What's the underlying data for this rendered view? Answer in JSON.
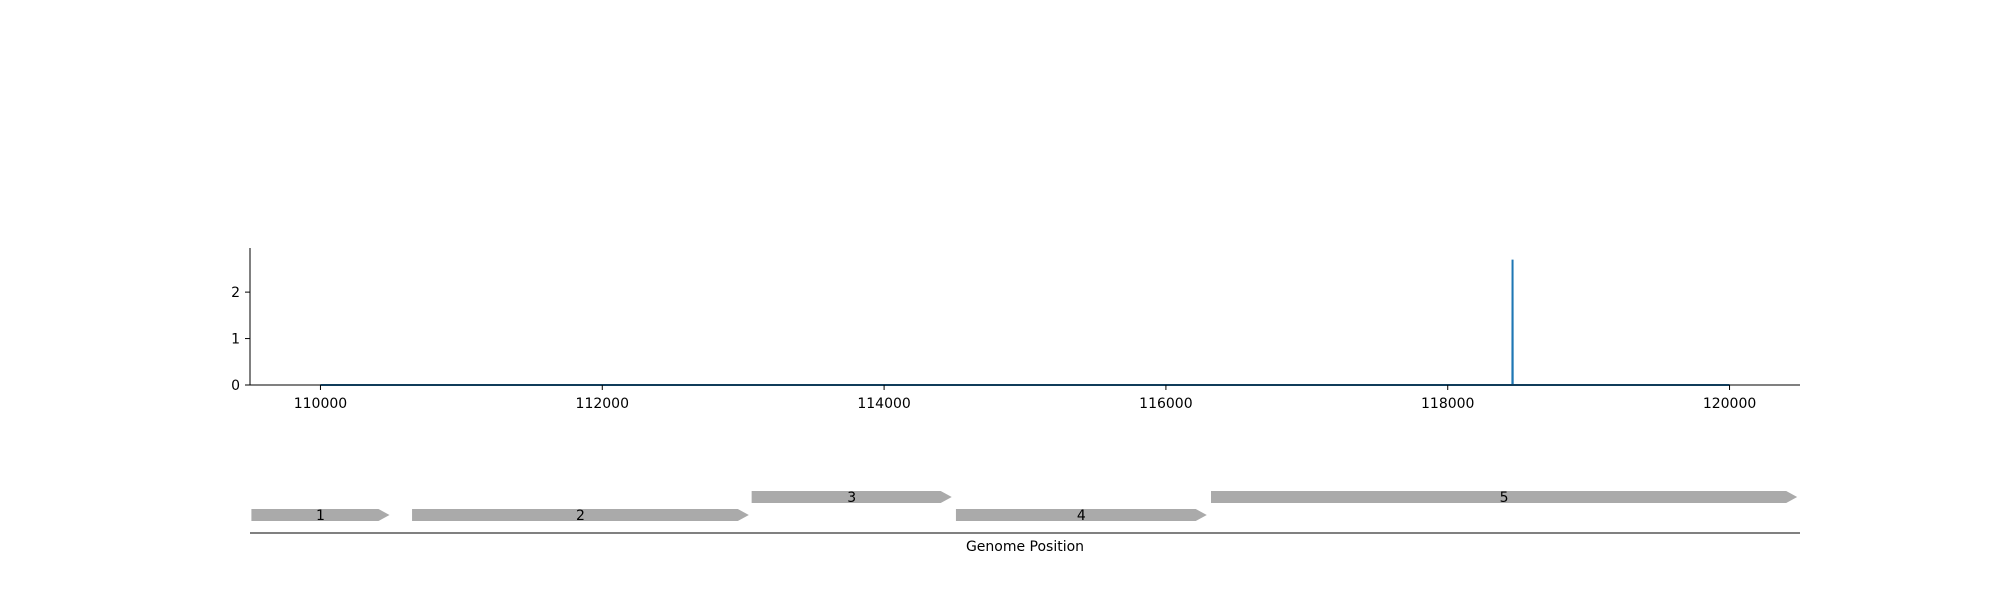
{
  "chart_data": [
    {
      "type": "line",
      "title": "",
      "xlabel": "",
      "ylabel": "",
      "xlim": [
        109500,
        120500
      ],
      "ylim": [
        0,
        2.95
      ],
      "x_ticks": [
        110000,
        112000,
        114000,
        116000,
        118000,
        120000
      ],
      "x_tick_labels": [
        "110000",
        "112000",
        "114000",
        "116000",
        "118000",
        "120000"
      ],
      "y_ticks": [
        0,
        1,
        2
      ],
      "y_tick_labels": [
        "0",
        "1",
        "2"
      ],
      "grid": false,
      "series": [
        {
          "color": "#1f77b4",
          "x": [
            110000,
            118459,
            118460,
            118461,
            120000
          ],
          "y": [
            0,
            0,
            2.7,
            0,
            0
          ]
        }
      ]
    },
    {
      "type": "gene_track",
      "xlabel": "Genome Position",
      "xlim": [
        109500,
        120500
      ],
      "color": "#aaaaaa",
      "genes": [
        {
          "label": "1",
          "start": 109510,
          "end": 110490,
          "strand": "+",
          "lane": 0
        },
        {
          "label": "2",
          "start": 110650,
          "end": 113040,
          "strand": "+",
          "lane": 0
        },
        {
          "label": "3",
          "start": 113060,
          "end": 114480,
          "strand": "+",
          "lane": 1
        },
        {
          "label": "4",
          "start": 114510,
          "end": 116290,
          "strand": "+",
          "lane": 0
        },
        {
          "label": "5",
          "start": 116320,
          "end": 120480,
          "strand": "+",
          "lane": 1
        }
      ]
    }
  ]
}
